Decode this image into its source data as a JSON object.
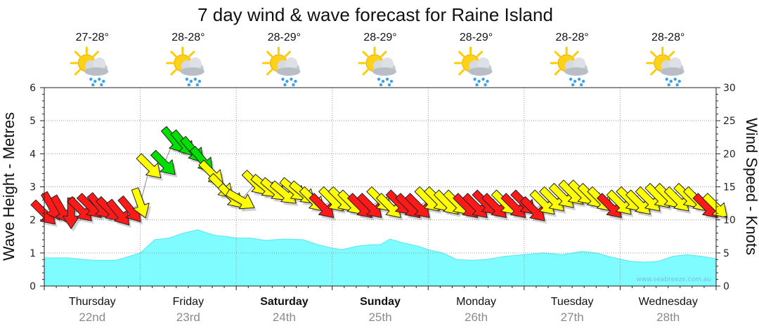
{
  "chart_data": {
    "type": "area",
    "title": "7 day wind & wave forecast for Raine Island",
    "ylabel_left": "Wave Height - Metres",
    "ylabel_right": "Wind Speed - Knots",
    "ylim_left": [
      0,
      6
    ],
    "ylim_right": [
      0,
      30
    ],
    "yticks_left": [
      "0",
      "1",
      "2",
      "3",
      "4",
      "5",
      "6"
    ],
    "yticks_right": [
      "0",
      "5",
      "10",
      "15",
      "20",
      "25",
      "30"
    ],
    "grid": "dotted",
    "watermark": "www.seabreeze.com.au",
    "days": [
      {
        "name": "Thursday",
        "date": "22nd",
        "temp": "27-28°",
        "bold": false,
        "icon": "sun-cloud-rain-icon"
      },
      {
        "name": "Friday",
        "date": "23rd",
        "temp": "28-28°",
        "bold": false,
        "icon": "sun-cloud-rain-icon"
      },
      {
        "name": "Saturday",
        "date": "24th",
        "temp": "28-29°",
        "bold": true,
        "icon": "sun-cloud-rain-icon"
      },
      {
        "name": "Sunday",
        "date": "25th",
        "temp": "28-29°",
        "bold": true,
        "icon": "sun-cloud-rain-icon"
      },
      {
        "name": "Monday",
        "date": "26th",
        "temp": "28-29°",
        "bold": false,
        "icon": "sun-cloud-rain-icon"
      },
      {
        "name": "Tuesday",
        "date": "27th",
        "temp": "28-28°",
        "bold": false,
        "icon": "sun-cloud-rain-icon"
      },
      {
        "name": "Wednesday",
        "date": "28th",
        "temp": "28-28°",
        "bold": false,
        "icon": "sun-cloud-rain-icon"
      }
    ],
    "wave": {
      "color": "#7ffcff",
      "x_days": [
        0,
        0.25,
        0.5,
        0.75,
        1.0,
        1.15,
        1.3,
        1.45,
        1.6,
        1.7,
        1.8,
        1.9,
        2.0,
        2.15,
        2.3,
        2.5,
        2.7,
        2.85,
        3.0,
        3.1,
        3.25,
        3.4,
        3.5,
        3.6,
        3.75,
        3.9,
        4.0,
        4.15,
        4.3,
        4.45,
        4.6,
        4.8,
        5.0,
        5.2,
        5.4,
        5.6,
        5.75,
        5.9,
        6.1,
        6.25,
        6.4,
        6.55,
        6.7,
        6.85,
        7.0
      ],
      "values": [
        0.85,
        0.85,
        0.78,
        0.78,
        1.0,
        1.4,
        1.45,
        1.6,
        1.7,
        1.6,
        1.52,
        1.5,
        1.45,
        1.45,
        1.38,
        1.42,
        1.4,
        1.25,
        1.15,
        1.1,
        1.2,
        1.25,
        1.25,
        1.42,
        1.3,
        1.2,
        1.1,
        1.0,
        0.8,
        0.78,
        0.8,
        0.9,
        0.95,
        1.0,
        0.95,
        1.05,
        1.0,
        0.88,
        0.75,
        0.72,
        0.75,
        0.9,
        0.95,
        0.9,
        0.82
      ]
    },
    "wind": {
      "colors": {
        "red": "#ff1a1a",
        "yellow": "#ffff00",
        "green": "#00e000"
      },
      "points": [
        {
          "t": 0.0,
          "kts": 11.0,
          "dir": 135,
          "c": "red"
        },
        {
          "t": 0.08,
          "kts": 12.0,
          "dir": 150,
          "c": "red"
        },
        {
          "t": 0.18,
          "kts": 11.5,
          "dir": 150,
          "c": "red"
        },
        {
          "t": 0.28,
          "kts": 11.0,
          "dir": 180,
          "c": "red"
        },
        {
          "t": 0.38,
          "kts": 11.5,
          "dir": 135,
          "c": "red"
        },
        {
          "t": 0.48,
          "kts": 12.0,
          "dir": 135,
          "c": "red"
        },
        {
          "t": 0.58,
          "kts": 12.0,
          "dir": 140,
          "c": "red"
        },
        {
          "t": 0.68,
          "kts": 11.5,
          "dir": 135,
          "c": "red"
        },
        {
          "t": 0.78,
          "kts": 11.0,
          "dir": 140,
          "c": "red"
        },
        {
          "t": 0.9,
          "kts": 11.5,
          "dir": 140,
          "c": "red"
        },
        {
          "t": 1.0,
          "kts": 12.5,
          "dir": 160,
          "c": "yellow"
        },
        {
          "t": 1.1,
          "kts": 18.0,
          "dir": 135,
          "c": "yellow"
        },
        {
          "t": 1.25,
          "kts": 18.5,
          "dir": 135,
          "c": "green"
        },
        {
          "t": 1.35,
          "kts": 22.0,
          "dir": 140,
          "c": "green"
        },
        {
          "t": 1.45,
          "kts": 21.5,
          "dir": 140,
          "c": "green"
        },
        {
          "t": 1.55,
          "kts": 20.5,
          "dir": 140,
          "c": "green"
        },
        {
          "t": 1.65,
          "kts": 19.0,
          "dir": 140,
          "c": "green"
        },
        {
          "t": 1.75,
          "kts": 17.0,
          "dir": 135,
          "c": "yellow"
        },
        {
          "t": 1.85,
          "kts": 15.0,
          "dir": 135,
          "c": "yellow"
        },
        {
          "t": 1.95,
          "kts": 13.5,
          "dir": 135,
          "c": "yellow"
        },
        {
          "t": 2.05,
          "kts": 13.0,
          "dir": 120,
          "c": "yellow"
        },
        {
          "t": 2.2,
          "kts": 15.5,
          "dir": 135,
          "c": "yellow"
        },
        {
          "t": 2.3,
          "kts": 15.0,
          "dir": 130,
          "c": "yellow"
        },
        {
          "t": 2.4,
          "kts": 14.5,
          "dir": 130,
          "c": "yellow"
        },
        {
          "t": 2.5,
          "kts": 14.0,
          "dir": 130,
          "c": "yellow"
        },
        {
          "t": 2.6,
          "kts": 14.5,
          "dir": 130,
          "c": "yellow"
        },
        {
          "t": 2.7,
          "kts": 14.0,
          "dir": 130,
          "c": "yellow"
        },
        {
          "t": 2.8,
          "kts": 13.0,
          "dir": 135,
          "c": "yellow"
        },
        {
          "t": 2.9,
          "kts": 12.0,
          "dir": 135,
          "c": "red"
        },
        {
          "t": 3.0,
          "kts": 13.0,
          "dir": 135,
          "c": "yellow"
        },
        {
          "t": 3.1,
          "kts": 13.0,
          "dir": 135,
          "c": "yellow"
        },
        {
          "t": 3.2,
          "kts": 12.5,
          "dir": 135,
          "c": "yellow"
        },
        {
          "t": 3.3,
          "kts": 12.0,
          "dir": 135,
          "c": "red"
        },
        {
          "t": 3.4,
          "kts": 12.0,
          "dir": 135,
          "c": "red"
        },
        {
          "t": 3.5,
          "kts": 13.0,
          "dir": 135,
          "c": "yellow"
        },
        {
          "t": 3.6,
          "kts": 12.0,
          "dir": 135,
          "c": "yellow"
        },
        {
          "t": 3.7,
          "kts": 12.5,
          "dir": 135,
          "c": "red"
        },
        {
          "t": 3.8,
          "kts": 12.0,
          "dir": 135,
          "c": "red"
        },
        {
          "t": 3.9,
          "kts": 12.0,
          "dir": 135,
          "c": "red"
        },
        {
          "t": 4.0,
          "kts": 13.0,
          "dir": 135,
          "c": "yellow"
        },
        {
          "t": 4.1,
          "kts": 13.0,
          "dir": 135,
          "c": "yellow"
        },
        {
          "t": 4.2,
          "kts": 12.5,
          "dir": 135,
          "c": "yellow"
        },
        {
          "t": 4.3,
          "kts": 12.5,
          "dir": 135,
          "c": "yellow"
        },
        {
          "t": 4.4,
          "kts": 12.0,
          "dir": 135,
          "c": "red"
        },
        {
          "t": 4.5,
          "kts": 12.0,
          "dir": 135,
          "c": "red"
        },
        {
          "t": 4.6,
          "kts": 12.5,
          "dir": 135,
          "c": "red"
        },
        {
          "t": 4.7,
          "kts": 12.0,
          "dir": 135,
          "c": "red"
        },
        {
          "t": 4.8,
          "kts": 12.5,
          "dir": 135,
          "c": "yellow"
        },
        {
          "t": 4.9,
          "kts": 12.0,
          "dir": 135,
          "c": "red"
        },
        {
          "t": 5.0,
          "kts": 12.5,
          "dir": 135,
          "c": "red"
        },
        {
          "t": 5.1,
          "kts": 11.5,
          "dir": 135,
          "c": "red"
        },
        {
          "t": 5.2,
          "kts": 12.5,
          "dir": 135,
          "c": "yellow"
        },
        {
          "t": 5.3,
          "kts": 13.0,
          "dir": 135,
          "c": "yellow"
        },
        {
          "t": 5.4,
          "kts": 13.5,
          "dir": 135,
          "c": "yellow"
        },
        {
          "t": 5.5,
          "kts": 14.0,
          "dir": 135,
          "c": "yellow"
        },
        {
          "t": 5.6,
          "kts": 14.0,
          "dir": 135,
          "c": "yellow"
        },
        {
          "t": 5.7,
          "kts": 13.5,
          "dir": 135,
          "c": "yellow"
        },
        {
          "t": 5.8,
          "kts": 13.0,
          "dir": 135,
          "c": "yellow"
        },
        {
          "t": 5.9,
          "kts": 12.0,
          "dir": 135,
          "c": "red"
        },
        {
          "t": 6.0,
          "kts": 12.5,
          "dir": 135,
          "c": "yellow"
        },
        {
          "t": 6.1,
          "kts": 13.0,
          "dir": 135,
          "c": "yellow"
        },
        {
          "t": 6.2,
          "kts": 12.5,
          "dir": 135,
          "c": "yellow"
        },
        {
          "t": 6.3,
          "kts": 13.0,
          "dir": 135,
          "c": "yellow"
        },
        {
          "t": 6.4,
          "kts": 13.5,
          "dir": 135,
          "c": "yellow"
        },
        {
          "t": 6.5,
          "kts": 13.5,
          "dir": 135,
          "c": "yellow"
        },
        {
          "t": 6.6,
          "kts": 13.0,
          "dir": 135,
          "c": "yellow"
        },
        {
          "t": 6.7,
          "kts": 13.5,
          "dir": 135,
          "c": "yellow"
        },
        {
          "t": 6.8,
          "kts": 13.0,
          "dir": 135,
          "c": "yellow"
        },
        {
          "t": 6.9,
          "kts": 12.0,
          "dir": 135,
          "c": "red"
        },
        {
          "t": 7.0,
          "kts": 12.0,
          "dir": 135,
          "c": "yellow"
        }
      ]
    }
  }
}
